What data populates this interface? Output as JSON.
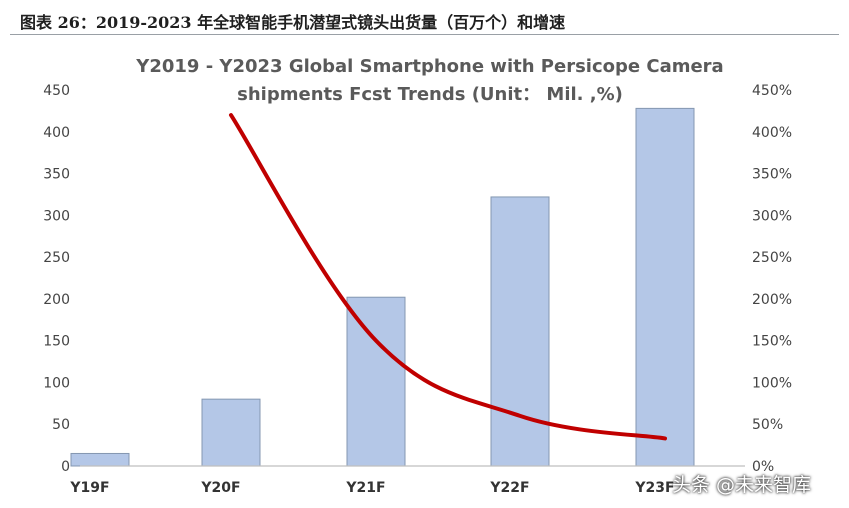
{
  "caption": "图表 26：2019-2023 年全球智能手机潜望式镜头出货量（百万个）和增速",
  "watermark": "头条 @未来智库",
  "chart_data": {
    "type": "bar",
    "title_line1": "Y2019 - Y2023 Global Smartphone with Persicope Camera",
    "title_line2": "shipments Fcst Trends (Unit： Mil. ,%)",
    "categories": [
      "Y19F",
      "Y20F",
      "Y21F",
      "Y22F",
      "Y23F"
    ],
    "series": [
      {
        "type": "bar",
        "values": [
          15,
          80,
          202,
          322,
          428
        ],
        "color": "#b4c7e7"
      },
      {
        "type": "line",
        "values": [
          null,
          420,
          150,
          60,
          33
        ],
        "color": "#c00000"
      }
    ],
    "ylim_left": [
      0,
      450
    ],
    "ylim_right": [
      0,
      450
    ],
    "yticks_left": [
      "0",
      "50",
      "100",
      "150",
      "200",
      "250",
      "300",
      "350",
      "400",
      "450"
    ],
    "yticks_right": [
      "0%",
      "50%",
      "100%",
      "150%",
      "200%",
      "250%",
      "300%",
      "350%",
      "400%",
      "450%"
    ],
    "grid": false
  }
}
